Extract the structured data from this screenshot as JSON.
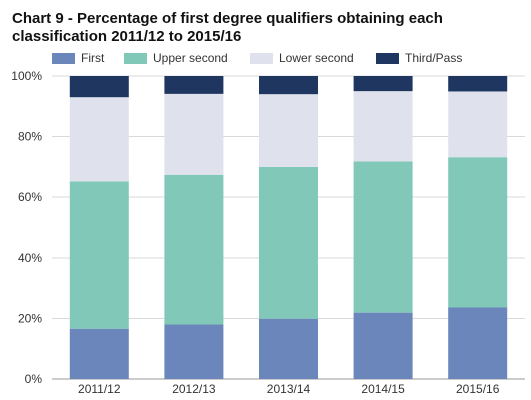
{
  "chart_data": {
    "type": "bar",
    "stacked": true,
    "title": "Chart 9 - Percentage of first degree qualifiers obtaining each classification 2011/12 to 2015/16",
    "xlabel": "",
    "ylabel": "",
    "ylim": [
      0,
      100
    ],
    "y_ticks": [
      "0%",
      "20%",
      "40%",
      "60%",
      "80%",
      "100%"
    ],
    "grid": true,
    "legend_position": "top",
    "categories": [
      "2011/12",
      "2012/13",
      "2013/14",
      "2014/15",
      "2015/16"
    ],
    "series": [
      {
        "name": "First",
        "color": "#6a86bb",
        "values": [
          16.6,
          18.0,
          19.9,
          21.9,
          23.6
        ]
      },
      {
        "name": "Upper second",
        "color": "#82c8b9",
        "values": [
          48.6,
          49.4,
          50.1,
          49.9,
          49.6
        ]
      },
      {
        "name": "Lower second",
        "color": "#dfe2ec",
        "values": [
          27.8,
          26.7,
          24.0,
          23.2,
          21.7
        ]
      },
      {
        "name": "Third/Pass",
        "color": "#1f3660",
        "values": [
          7.0,
          5.9,
          6.0,
          5.0,
          5.1
        ]
      }
    ]
  }
}
